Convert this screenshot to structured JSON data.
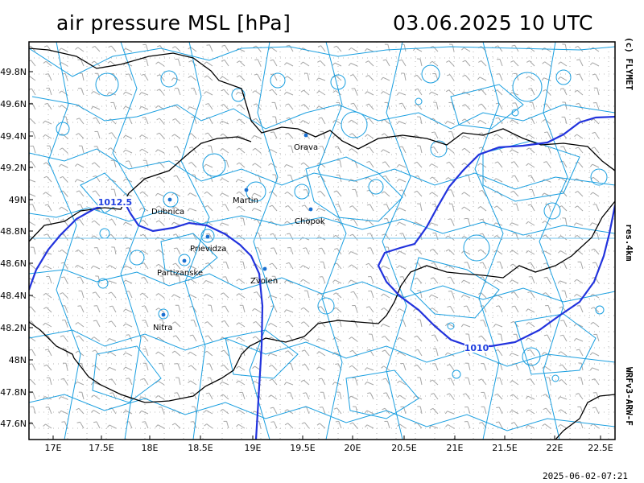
{
  "header": {
    "title": "air pressure MSL [hPa]",
    "datetime": "03.06.2025   10 UTC"
  },
  "side_labels": {
    "copyright": "(c) FLYMET",
    "resolution": "res.4km",
    "model": "WRFv3-ARW-F"
  },
  "timestamp": "2025-06-02-07:21",
  "axes": {
    "lon_ticks": [
      "17E",
      "17.5E",
      "18E",
      "18.5E",
      "19E",
      "19.5E",
      "20E",
      "20.5E",
      "21E",
      "21.5E",
      "22E",
      "22.5E"
    ],
    "lat_ticks": [
      "49.8N",
      "49.6N",
      "49.4N",
      "49.2N",
      "49N",
      "48.8N",
      "48.6N",
      "48.4N",
      "48.2N",
      "48N",
      "47.8N",
      "47.6N"
    ]
  },
  "cities": [
    {
      "name": "Orava"
    },
    {
      "name": "Martin"
    },
    {
      "name": "Dubnica"
    },
    {
      "name": "Chopok"
    },
    {
      "name": "Prievidza"
    },
    {
      "name": "Partizanske"
    },
    {
      "name": "Zvolen"
    },
    {
      "name": "Nitra"
    }
  ],
  "isobars": [
    {
      "label": "1012.5",
      "value": 1012.5
    },
    {
      "label": "1010",
      "value": 1010
    }
  ],
  "colors": {
    "isobar": "#2233dd",
    "terrain": "#1a9fe0",
    "border": "#000000",
    "wind": "#999999",
    "grid": "#aaaaaa"
  }
}
